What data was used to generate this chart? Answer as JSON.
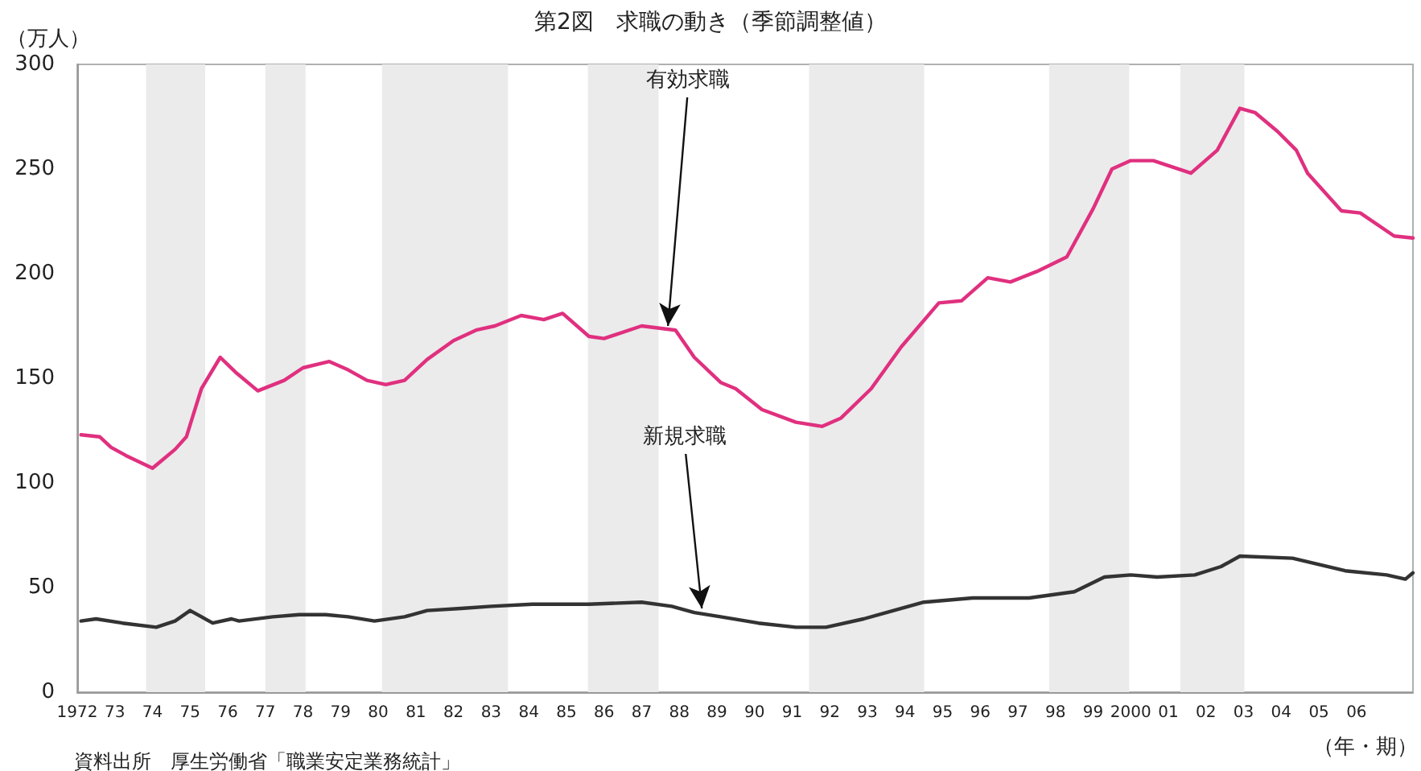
{
  "chart_data": {
    "type": "line",
    "title": "第2図　求職の動き（季節調整値）",
    "ylabel": "（万人）",
    "xlabel": "（年・期）",
    "xlim": [
      1972,
      2007.5
    ],
    "xticks": [
      {
        "value": 1972,
        "label": "1972"
      },
      {
        "value": 1973,
        "label": "73"
      },
      {
        "value": 1974,
        "label": "74"
      },
      {
        "value": 1975,
        "label": "75"
      },
      {
        "value": 1976,
        "label": "76"
      },
      {
        "value": 1977,
        "label": "77"
      },
      {
        "value": 1978,
        "label": "78"
      },
      {
        "value": 1979,
        "label": "79"
      },
      {
        "value": 1980,
        "label": "80"
      },
      {
        "value": 1981,
        "label": "81"
      },
      {
        "value": 1982,
        "label": "82"
      },
      {
        "value": 1983,
        "label": "83"
      },
      {
        "value": 1984,
        "label": "84"
      },
      {
        "value": 1985,
        "label": "85"
      },
      {
        "value": 1986,
        "label": "86"
      },
      {
        "value": 1987,
        "label": "87"
      },
      {
        "value": 1988,
        "label": "88"
      },
      {
        "value": 1989,
        "label": "89"
      },
      {
        "value": 1990,
        "label": "90"
      },
      {
        "value": 1991,
        "label": "91"
      },
      {
        "value": 1992,
        "label": "92"
      },
      {
        "value": 1993,
        "label": "93"
      },
      {
        "value": 1994,
        "label": "94"
      },
      {
        "value": 1995,
        "label": "95"
      },
      {
        "value": 1996,
        "label": "96"
      },
      {
        "value": 1997,
        "label": "97"
      },
      {
        "value": 1998,
        "label": "98"
      },
      {
        "value": 1999,
        "label": "99"
      },
      {
        "value": 2000,
        "label": "2000"
      },
      {
        "value": 2001,
        "label": "01"
      },
      {
        "value": 2002,
        "label": "02"
      },
      {
        "value": 2003,
        "label": "03"
      },
      {
        "value": 2004,
        "label": "04"
      },
      {
        "value": 2005,
        "label": "05"
      },
      {
        "value": 2006,
        "label": "06"
      }
    ],
    "ylim": [
      0,
      300
    ],
    "yticks": [
      0,
      50,
      100,
      150,
      200,
      250,
      300
    ],
    "grid": false,
    "marker": "none",
    "line_style": "solid",
    "series": [
      {
        "color": "#e0307f",
        "x": [
          1972.1,
          1972.6,
          1972.9,
          1973.3,
          1974.0,
          1974.2,
          1974.6,
          1974.9,
          1975.3,
          1975.8,
          1976.2,
          1976.8,
          1977.5,
          1978.0,
          1978.7,
          1979.2,
          1979.7,
          1980.2,
          1980.7,
          1981.3,
          1982.0,
          1982.6,
          1983.1,
          1983.8,
          1984.4,
          1984.9,
          1985.6,
          1986.0,
          1987.0,
          1987.9,
          1988.4,
          1989.1,
          1989.5,
          1990.2,
          1991.1,
          1991.8,
          1992.3,
          1993.1,
          1993.9,
          1994.9,
          1995.5,
          1996.2,
          1996.8,
          1997.5,
          1998.3,
          1999.0,
          1999.5,
          2000.0,
          2000.6,
          2001.6,
          2002.3,
          2002.9,
          2003.3,
          2003.9,
          2004.4,
          2004.7,
          2005.6,
          2006.1,
          2007.0,
          2007.5
        ],
        "values": [
          123,
          122,
          117,
          113,
          107,
          110,
          116,
          122,
          145,
          160,
          153,
          144,
          149,
          155,
          158,
          154,
          149,
          147,
          149,
          159,
          168,
          173,
          175,
          180,
          178,
          181,
          170,
          169,
          175,
          173,
          160,
          148,
          145,
          135,
          129,
          127,
          131,
          145,
          165,
          186,
          187,
          198,
          196,
          201,
          208,
          231,
          250,
          254,
          254,
          248,
          259,
          279,
          277,
          268,
          259,
          248,
          230,
          229,
          218,
          217
        ]
      },
      {
        "color": "#333333",
        "x": [
          1972.1,
          1972.5,
          1973.2,
          1974.1,
          1974.6,
          1975.0,
          1975.6,
          1976.1,
          1976.3,
          1977.2,
          1977.9,
          1978.6,
          1979.2,
          1979.9,
          1980.7,
          1981.3,
          1982.2,
          1983.0,
          1984.1,
          1985.6,
          1987.0,
          1987.8,
          1988.4,
          1989.1,
          1990.1,
          1991.1,
          1991.9,
          1992.9,
          1994.5,
          1995.8,
          1997.3,
          1998.5,
          1999.3,
          2000.0,
          2000.7,
          2001.7,
          2002.4,
          2002.9,
          2004.3,
          2005.7,
          2006.8,
          2007.3,
          2007.5
        ],
        "values": [
          34,
          35,
          33,
          31,
          34,
          39,
          33,
          35,
          34,
          36,
          37,
          37,
          36,
          34,
          36,
          39,
          40,
          41,
          42,
          42,
          43,
          41,
          38,
          36,
          33,
          31,
          31,
          35,
          43,
          45,
          45,
          48,
          55,
          56,
          55,
          56,
          60,
          65,
          64,
          58,
          56,
          54,
          57
        ]
      }
    ],
    "bands": [
      {
        "axis": "x",
        "from": 1973.83,
        "to": 1975.4,
        "color": "#ebebeb"
      },
      {
        "axis": "x",
        "from": 1977.0,
        "to": 1978.07,
        "color": "#ebebeb"
      },
      {
        "axis": "x",
        "from": 1980.1,
        "to": 1983.45,
        "color": "#ebebeb"
      },
      {
        "axis": "x",
        "from": 1985.57,
        "to": 1987.45,
        "color": "#ebebeb"
      },
      {
        "axis": "x",
        "from": 1991.45,
        "to": 1994.51,
        "color": "#ebebeb"
      },
      {
        "axis": "x",
        "from": 1997.83,
        "to": 1999.96,
        "color": "#ebebeb"
      },
      {
        "axis": "x",
        "from": 2001.32,
        "to": 2003.02,
        "color": "#ebebeb"
      }
    ],
    "annotations": [
      {
        "text": "有効求職",
        "x": 1987.7,
        "y": 175
      },
      {
        "text": "新規求職",
        "x": 1988.6,
        "y": 40
      },
      "資料出所　厚生労働省「職業安定業務統計」"
    ]
  }
}
